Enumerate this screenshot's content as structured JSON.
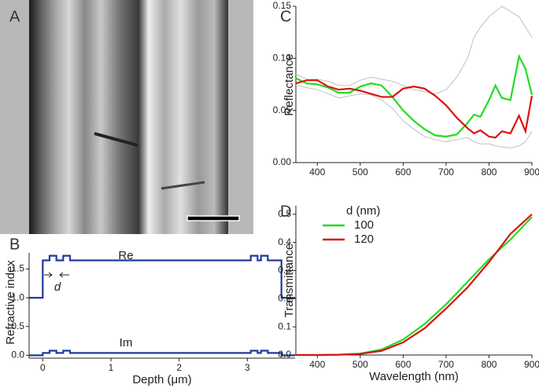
{
  "image_panel": {
    "panel_label": "A"
  },
  "chart_data": [
    {
      "type": "line",
      "panel_label": "B",
      "x_label": "Depth (μm)",
      "y_label": "Refractive index",
      "annotations": [
        "Re",
        "Im",
        "d"
      ],
      "x": [
        -0.2,
        0,
        0,
        0.1,
        0.1,
        0.2,
        0.2,
        0.3,
        0.3,
        0.4,
        0.4,
        3.05,
        3.05,
        3.15,
        3.15,
        3.2,
        3.2,
        3.3,
        3.3,
        3.5,
        3.5,
        3.7
      ],
      "series": [
        {
          "name": "Re",
          "color": "#1f3a9e",
          "values": [
            1,
            1,
            1.65,
            1.65,
            1.73,
            1.73,
            1.65,
            1.65,
            1.73,
            1.73,
            1.65,
            1.65,
            1.73,
            1.73,
            1.65,
            1.65,
            1.73,
            1.73,
            1.65,
            1.65,
            1,
            1
          ]
        },
        {
          "name": "Im",
          "color": "#1f3a9e",
          "values": [
            0,
            0,
            0.04,
            0.04,
            0.08,
            0.08,
            0.04,
            0.04,
            0.08,
            0.08,
            0.04,
            0.04,
            0.08,
            0.08,
            0.04,
            0.04,
            0.08,
            0.08,
            0.04,
            0.04,
            0,
            0
          ]
        }
      ],
      "xlim": [
        -0.2,
        3.7
      ],
      "xticks": [
        0,
        1,
        2,
        3
      ],
      "ylim": [
        -0.05,
        1.78
      ],
      "yticks": [
        {
          "value": 0,
          "label": "0.0"
        },
        0.5,
        {
          "value": 1,
          "label": "1.0"
        },
        1.5
      ]
    },
    {
      "type": "line",
      "panel_label": "C",
      "y_label": "Reflectance",
      "x": [
        350,
        375,
        400,
        425,
        450,
        475,
        500,
        525,
        550,
        575,
        600,
        625,
        650,
        675,
        700,
        725,
        750,
        765,
        780,
        800,
        815,
        830,
        850,
        870,
        885,
        900
      ],
      "series": [
        {
          "color": "#c0c0c0",
          "values": [
            0.085,
            0.08,
            0.08,
            0.078,
            0.074,
            0.074,
            0.079,
            0.082,
            0.08,
            0.078,
            0.074,
            0.07,
            0.068,
            0.066,
            0.07,
            0.082,
            0.1,
            0.12,
            0.13,
            0.14,
            0.145,
            0.15,
            0.145,
            0.14,
            0.13,
            0.12
          ]
        },
        {
          "color": "#c0c0c0",
          "values": [
            0.074,
            0.072,
            0.07,
            0.066,
            0.062,
            0.064,
            0.066,
            0.065,
            0.06,
            0.052,
            0.04,
            0.032,
            0.025,
            0.022,
            0.02,
            0.022,
            0.024,
            0.02,
            0.018,
            0.018,
            0.016,
            0.015,
            0.014,
            0.016,
            0.02,
            0.03
          ]
        },
        {
          "color": "#22dd22",
          "values": [
            0.081,
            0.076,
            0.075,
            0.072,
            0.067,
            0.067,
            0.073,
            0.076,
            0.074,
            0.063,
            0.05,
            0.04,
            0.032,
            0.026,
            0.025,
            0.027,
            0.038,
            0.046,
            0.044,
            0.06,
            0.074,
            0.062,
            0.06,
            0.102,
            0.09,
            0.065
          ]
        },
        {
          "color": "#dd1111",
          "values": [
            0.076,
            0.079,
            0.079,
            0.073,
            0.07,
            0.071,
            0.069,
            0.066,
            0.063,
            0.063,
            0.071,
            0.073,
            0.071,
            0.064,
            0.055,
            0.043,
            0.033,
            0.028,
            0.031,
            0.025,
            0.024,
            0.03,
            0.028,
            0.045,
            0.03,
            0.064
          ]
        }
      ],
      "xlim": [
        350,
        900
      ],
      "xticks": [
        400,
        500,
        600,
        700,
        800,
        900
      ],
      "ylim": [
        0,
        0.15
      ],
      "yticks": [
        {
          "value": 0,
          "label": "0.00"
        },
        0.05,
        {
          "value": 0.1,
          "label": "0.10"
        },
        0.15
      ]
    },
    {
      "type": "line",
      "panel_label": "D",
      "x_label": "Wavelength (nm)",
      "y_label": "Transmittance",
      "legend_title": "d (nm)",
      "x": [
        350,
        400,
        450,
        500,
        550,
        600,
        650,
        700,
        750,
        800,
        850,
        900
      ],
      "series": [
        {
          "name": "100",
          "color": "#22dd22",
          "values": [
            0,
            0,
            0.001,
            0.005,
            0.02,
            0.055,
            0.11,
            0.18,
            0.26,
            0.34,
            0.41,
            0.49
          ]
        },
        {
          "name": "120",
          "color": "#dd1111",
          "values": [
            0,
            0,
            0.001,
            0.004,
            0.015,
            0.045,
            0.095,
            0.165,
            0.24,
            0.33,
            0.43,
            0.5
          ]
        }
      ],
      "xlim": [
        350,
        900
      ],
      "xticks": [
        400,
        500,
        600,
        700,
        800,
        900
      ],
      "ylim": [
        0,
        0.53
      ],
      "yticks": [
        {
          "value": 0,
          "label": "0.0"
        },
        0.1,
        0.2,
        0.3,
        0.4,
        0.5
      ]
    }
  ]
}
